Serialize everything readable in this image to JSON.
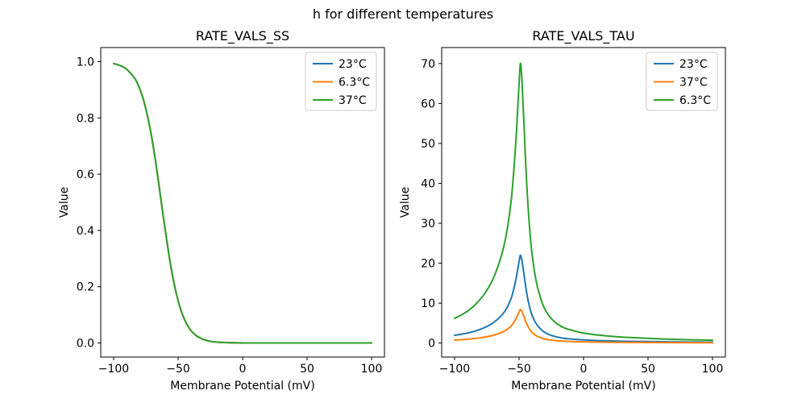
{
  "figure": {
    "suptitle": "h for different temperatures",
    "background": "#ffffff"
  },
  "colors": {
    "blue": "#1f77b4",
    "orange": "#ff7f0e",
    "green": "#2ca02c",
    "axis": "#000000",
    "legend_border": "#cccccc"
  },
  "chart_data": [
    {
      "type": "line",
      "title": "RATE_VALS_SS",
      "xlabel": "Membrane Potential (mV)",
      "ylabel": "Value",
      "grid": false,
      "legend_position": "upper-right",
      "xlim": [
        -110,
        110
      ],
      "ylim": [
        -0.05,
        1.05
      ],
      "xticks": [
        -100,
        -50,
        0,
        50,
        100
      ],
      "xtick_labels": [
        "−100",
        "−50",
        "0",
        "50",
        "100"
      ],
      "yticks": [
        0.0,
        0.2,
        0.4,
        0.6,
        0.8,
        1.0
      ],
      "ytick_labels": [
        "0.0",
        "0.2",
        "0.4",
        "0.6",
        "0.8",
        "1.0"
      ],
      "x": [
        -100,
        -95,
        -90,
        -85,
        -82.5,
        -80,
        -77.5,
        -75,
        -72.5,
        -70,
        -67.5,
        -65,
        -62.5,
        -60,
        -57.5,
        -55,
        -52.5,
        -50,
        -47.5,
        -45,
        -42.5,
        -40,
        -37.5,
        -35,
        -32.5,
        -30,
        -25,
        -20,
        -15,
        -10,
        -5,
        0,
        10,
        25,
        50,
        75,
        100
      ],
      "series": [
        {
          "name": "23°C",
          "color_key": "blue",
          "values": [
            0.993,
            0.986,
            0.973,
            0.949,
            0.932,
            0.906,
            0.874,
            0.832,
            0.78,
            0.718,
            0.646,
            0.566,
            0.483,
            0.401,
            0.325,
            0.256,
            0.198,
            0.15,
            0.112,
            0.083,
            0.061,
            0.044,
            0.032,
            0.023,
            0.017,
            0.012,
            0.006,
            0.003,
            0.002,
            0.001,
            0.0005,
            0.0002,
            0.0001,
            0,
            0,
            0,
            0
          ]
        },
        {
          "name": "6.3°C",
          "color_key": "orange",
          "values": [
            0.993,
            0.986,
            0.973,
            0.949,
            0.932,
            0.906,
            0.874,
            0.832,
            0.78,
            0.718,
            0.646,
            0.566,
            0.483,
            0.401,
            0.325,
            0.256,
            0.198,
            0.15,
            0.112,
            0.083,
            0.061,
            0.044,
            0.032,
            0.023,
            0.017,
            0.012,
            0.006,
            0.003,
            0.002,
            0.001,
            0.0005,
            0.0002,
            0.0001,
            0,
            0,
            0,
            0
          ]
        },
        {
          "name": "37°C",
          "color_key": "green",
          "values": [
            0.993,
            0.986,
            0.973,
            0.949,
            0.932,
            0.906,
            0.874,
            0.832,
            0.78,
            0.718,
            0.646,
            0.566,
            0.483,
            0.401,
            0.325,
            0.256,
            0.198,
            0.15,
            0.112,
            0.083,
            0.061,
            0.044,
            0.032,
            0.023,
            0.017,
            0.012,
            0.006,
            0.003,
            0.002,
            0.001,
            0.0005,
            0.0002,
            0.0001,
            0,
            0,
            0,
            0
          ]
        }
      ]
    },
    {
      "type": "line",
      "title": "RATE_VALS_TAU",
      "xlabel": "Membrane Potential (mV)",
      "ylabel": "Value",
      "grid": false,
      "legend_position": "upper-right",
      "xlim": [
        -110,
        110
      ],
      "ylim": [
        -3.5,
        74
      ],
      "xticks": [
        -100,
        -50,
        0,
        50,
        100
      ],
      "xtick_labels": [
        "−100",
        "−50",
        "0",
        "50",
        "100"
      ],
      "yticks": [
        0,
        10,
        20,
        30,
        40,
        50,
        60,
        70
      ],
      "ytick_labels": [
        "0",
        "10",
        "20",
        "30",
        "40",
        "50",
        "60",
        "70"
      ],
      "x": [
        -100,
        -95,
        -90,
        -85,
        -80,
        -75,
        -70,
        -65,
        -62,
        -60,
        -58,
        -56,
        -55,
        -54,
        -53,
        -52,
        -51,
        -50,
        -49,
        -48,
        -47,
        -46,
        -45,
        -44,
        -43,
        -42,
        -41,
        -40,
        -38,
        -36,
        -34,
        -32,
        -30,
        -28,
        -26,
        -24,
        -22,
        -20,
        -15,
        -10,
        -5,
        0,
        10,
        20,
        30,
        40,
        50,
        60,
        70,
        80,
        90,
        100
      ],
      "series": [
        {
          "name": "23°C",
          "color_key": "blue",
          "values": [
            1.95,
            2.2,
            2.52,
            2.92,
            3.46,
            4.15,
            5.09,
            6.45,
            7.55,
            8.49,
            9.75,
            11.32,
            12.42,
            13.68,
            15.09,
            16.67,
            18.55,
            20.44,
            22.0,
            21.07,
            19.03,
            16.82,
            14.47,
            12.42,
            10.69,
            9.28,
            8.02,
            7.08,
            5.6,
            4.53,
            3.77,
            3.14,
            2.67,
            2.33,
            2.04,
            1.82,
            1.64,
            1.48,
            1.19,
            1.04,
            0.9,
            0.79,
            0.64,
            0.55,
            0.47,
            0.42,
            0.38,
            0.33,
            0.3,
            0.27,
            0.25,
            0.23
          ]
        },
        {
          "name": "37°C",
          "color_key": "orange",
          "values": [
            0.75,
            0.84,
            0.96,
            1.12,
            1.33,
            1.59,
            1.95,
            2.47,
            2.89,
            3.25,
            3.73,
            4.34,
            4.76,
            5.24,
            5.78,
            6.39,
            7.11,
            7.83,
            8.43,
            8.07,
            7.29,
            6.45,
            5.54,
            4.76,
            4.1,
            3.55,
            3.07,
            2.71,
            2.14,
            1.73,
            1.45,
            1.2,
            1.02,
            0.89,
            0.78,
            0.7,
            0.63,
            0.57,
            0.46,
            0.4,
            0.34,
            0.3,
            0.25,
            0.21,
            0.18,
            0.16,
            0.14,
            0.13,
            0.11,
            0.1,
            0.09,
            0.09
          ]
        },
        {
          "name": "6.3°C",
          "color_key": "green",
          "values": [
            6.2,
            7.0,
            8.0,
            9.3,
            11.0,
            13.2,
            16.2,
            20.5,
            24,
            27,
            31,
            36,
            39.5,
            43.5,
            48,
            53,
            59,
            65,
            70,
            67,
            60.5,
            53.5,
            46,
            39.5,
            34,
            29.5,
            25.5,
            22.5,
            17.8,
            14.4,
            12,
            10,
            8.5,
            7.4,
            6.5,
            5.8,
            5.2,
            4.7,
            3.8,
            3.3,
            2.85,
            2.5,
            2.05,
            1.75,
            1.5,
            1.35,
            1.2,
            1.05,
            0.95,
            0.85,
            0.78,
            0.72
          ]
        }
      ]
    }
  ]
}
